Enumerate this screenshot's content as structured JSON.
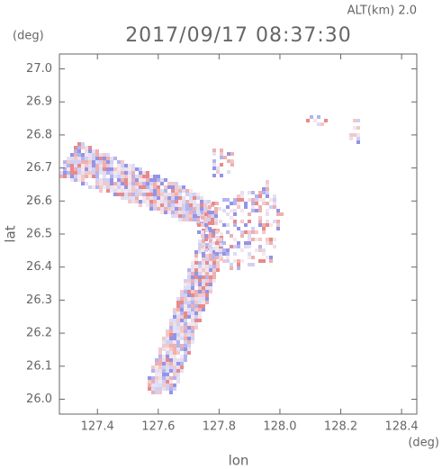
{
  "chart_data": {
    "type": "map",
    "title": "2017/09/17 08:37:30",
    "subtitle": "ALT(km)  2.0",
    "x_label": "lon",
    "y_label": "lat",
    "x_unit": "(deg)",
    "y_unit": "(deg)",
    "xlim": [
      127.275,
      128.45
    ],
    "ylim": [
      25.955,
      27.045
    ],
    "xticks": [
      127.4,
      127.6,
      127.8,
      {
        "value": 128,
        "label": "128.0"
      },
      128.2,
      128.4
    ],
    "yticks": [
      {
        "value": 26,
        "label": "26.0"
      },
      26.1,
      26.2,
      26.3,
      26.4,
      26.5,
      26.6,
      26.7,
      26.8,
      26.9,
      {
        "value": 27,
        "label": "27.0"
      }
    ]
  }
}
